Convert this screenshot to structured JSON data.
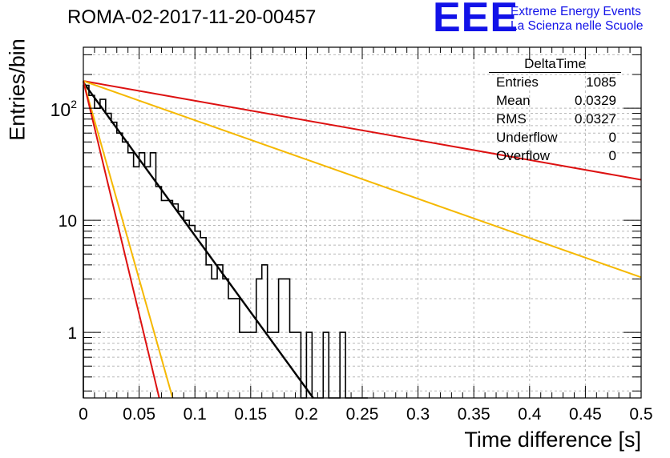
{
  "header": {
    "title": "ROMA-02-2017-11-20-00457",
    "logo_text": "EEE",
    "logo_line1": "Extreme Energy Events",
    "logo_line2": "La Scienza nelle Scuole"
  },
  "stats": {
    "name": "DeltaTime",
    "rows": [
      {
        "label": "Entries",
        "value": "1085"
      },
      {
        "label": "Mean",
        "value": "0.0329"
      },
      {
        "label": "RMS",
        "value": "0.0327"
      },
      {
        "label": "Underflow",
        "value": "0"
      },
      {
        "label": "Overflow",
        "value": "0"
      }
    ]
  },
  "colors": {
    "histogram": "#000000",
    "fit": "#000000",
    "red_lines": "#dd1111",
    "yellow_lines": "#f5b800",
    "grid": "#b8b8b8"
  },
  "chart_data": {
    "type": "line",
    "title": "ROMA-02-2017-11-20-00457",
    "xlabel": "Time difference [s]",
    "ylabel": "Entries/bin",
    "xlim": [
      0,
      0.5
    ],
    "ylim": [
      0.26,
      350
    ],
    "yscale": "log",
    "grid": true,
    "x_ticks": [
      0,
      0.05,
      0.1,
      0.15,
      0.2,
      0.25,
      0.3,
      0.35,
      0.4,
      0.45,
      0.5
    ],
    "x_tick_labels": [
      "0",
      "0.05",
      "0.1",
      "0.15",
      "0.2",
      "0.25",
      "0.3",
      "0.35",
      "0.4",
      "0.45",
      "0.5"
    ],
    "y_ticks": [
      1,
      10,
      100
    ],
    "y_tick_labels": [
      "1",
      "10",
      "10^2"
    ],
    "histogram": {
      "name": "DeltaTime",
      "bin_width": 0.005,
      "x_start": 0,
      "counts": [
        160,
        130,
        100,
        120,
        90,
        75,
        60,
        50,
        40,
        30,
        40,
        30,
        40,
        20,
        15,
        15,
        14,
        12,
        10,
        9,
        8,
        7,
        4,
        3,
        4,
        3,
        2,
        2,
        1,
        1,
        1,
        3,
        4,
        1,
        1,
        3,
        3,
        1,
        1,
        0,
        1,
        0,
        0.1,
        1,
        0,
        0.1,
        1,
        0,
        0,
        0,
        0
      ]
    },
    "lines": [
      {
        "color": "black",
        "points": [
          [
            0,
            170
          ],
          [
            0.206,
            0.26
          ]
        ]
      },
      {
        "color": "red",
        "points": [
          [
            0,
            175
          ],
          [
            0.5,
            23
          ]
        ]
      },
      {
        "color": "yellow",
        "points": [
          [
            0,
            175
          ],
          [
            0.5,
            3.1
          ]
        ]
      },
      {
        "color": "yellow",
        "points": [
          [
            0,
            175
          ],
          [
            0.08,
            0.26
          ]
        ]
      },
      {
        "color": "red",
        "points": [
          [
            0,
            175
          ],
          [
            0.068,
            0.26
          ]
        ]
      }
    ]
  }
}
